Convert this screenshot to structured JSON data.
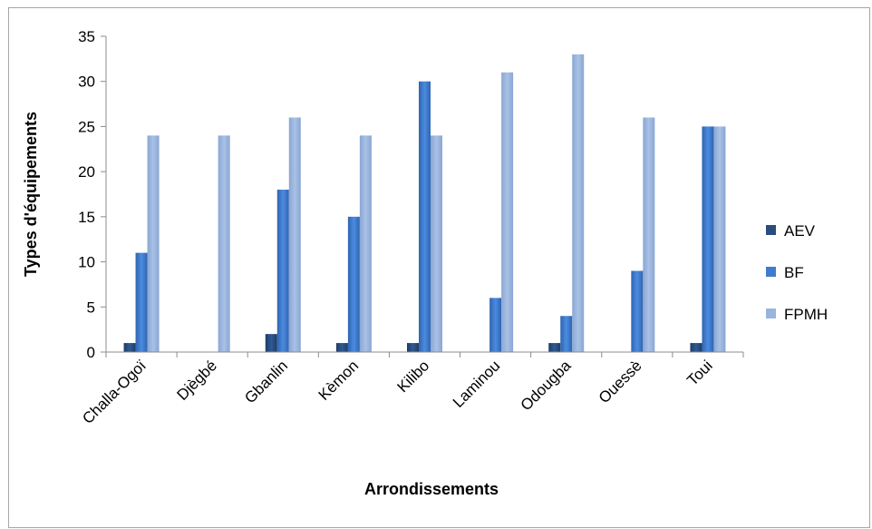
{
  "chart_data": {
    "type": "bar",
    "title": "",
    "xlabel": "Arrondissements",
    "ylabel": "Types d'équipements",
    "ylim": [
      0,
      35
    ],
    "yticks": [
      "0",
      "5",
      "10",
      "15",
      "20",
      "25",
      "30",
      "35"
    ],
    "grid": false,
    "legend_position": "right",
    "categories": [
      "Challa-Ogoï",
      "Djègbé",
      "Gbanlin",
      "Kèmon",
      "Kilibo",
      "Laminou",
      "Odougba",
      "Ouessè",
      "Toui"
    ],
    "series": [
      {
        "name": "AEV",
        "color": "#2a4d7f",
        "values": [
          1,
          0,
          2,
          1,
          1,
          0,
          1,
          0,
          1
        ]
      },
      {
        "name": "BF",
        "color": "#3f7ccf",
        "values": [
          11,
          0,
          18,
          15,
          30,
          6,
          4,
          9,
          25
        ]
      },
      {
        "name": "FPMH",
        "color": "#99b4de",
        "values": [
          24,
          24,
          26,
          24,
          24,
          31,
          33,
          26,
          25
        ]
      }
    ]
  }
}
